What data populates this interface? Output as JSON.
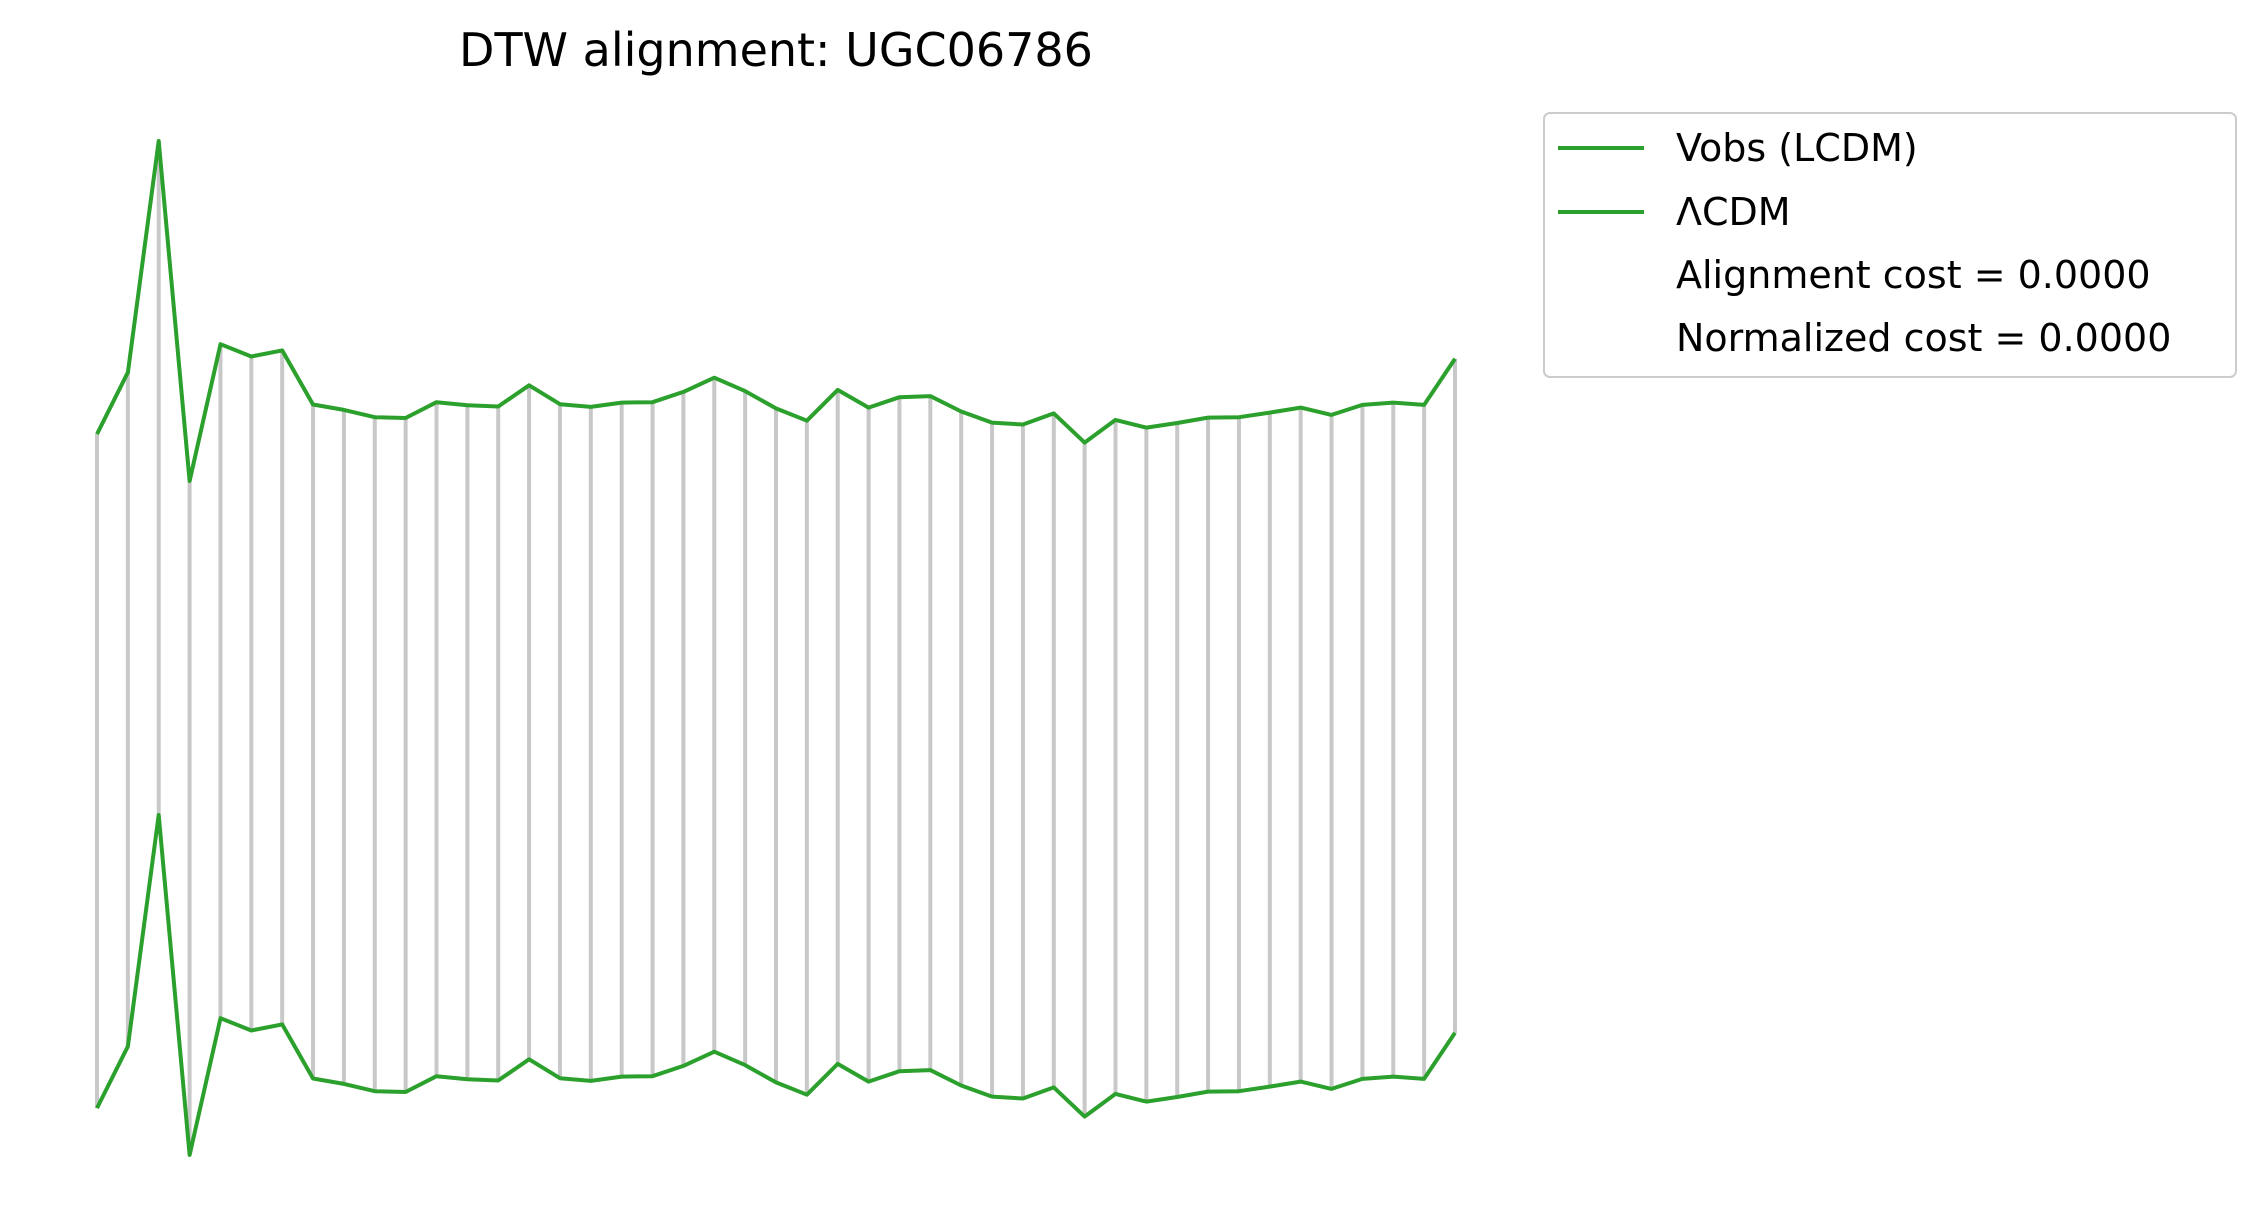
{
  "chart_data": {
    "type": "line",
    "title": "DTW alignment: UGC06786",
    "xlabel": "",
    "ylabel": "",
    "axes_visible": false,
    "grid": false,
    "legend_position": "upper right, outside plot area",
    "line_color": "#2ca02c",
    "connector_color": "#c8c8c8",
    "series": [
      {
        "name": "Vobs (LCDM)",
        "values": [
          0.145,
          0.306,
          0.908,
          0.023,
          0.379,
          0.347,
          0.363,
          0.222,
          0.208,
          0.189,
          0.187,
          0.228,
          0.22,
          0.217,
          0.272,
          0.223,
          0.216,
          0.227,
          0.228,
          0.255,
          0.292,
          0.257,
          0.212,
          0.18,
          0.26,
          0.214,
          0.241,
          0.244,
          0.204,
          0.175,
          0.17,
          0.199,
          0.123,
          0.182,
          0.162,
          0.174,
          0.188,
          0.189,
          0.201,
          0.214,
          0.195,
          0.221,
          0.227,
          0.221,
          0.341
        ]
      },
      {
        "name": "ΛCDM",
        "values": [
          0.145,
          0.306,
          0.908,
          0.023,
          0.379,
          0.347,
          0.363,
          0.222,
          0.208,
          0.189,
          0.187,
          0.228,
          0.22,
          0.217,
          0.272,
          0.223,
          0.216,
          0.227,
          0.228,
          0.255,
          0.292,
          0.257,
          0.212,
          0.18,
          0.26,
          0.214,
          0.241,
          0.244,
          0.204,
          0.175,
          0.17,
          0.199,
          0.123,
          0.182,
          0.162,
          0.174,
          0.188,
          0.189,
          0.201,
          0.214,
          0.195,
          0.221,
          0.227,
          0.221,
          0.341
        ]
      }
    ],
    "alignment": "one-to-one",
    "legend_extra": [
      "Alignment cost = 0.0000",
      "Normalized cost = 0.0000"
    ]
  }
}
